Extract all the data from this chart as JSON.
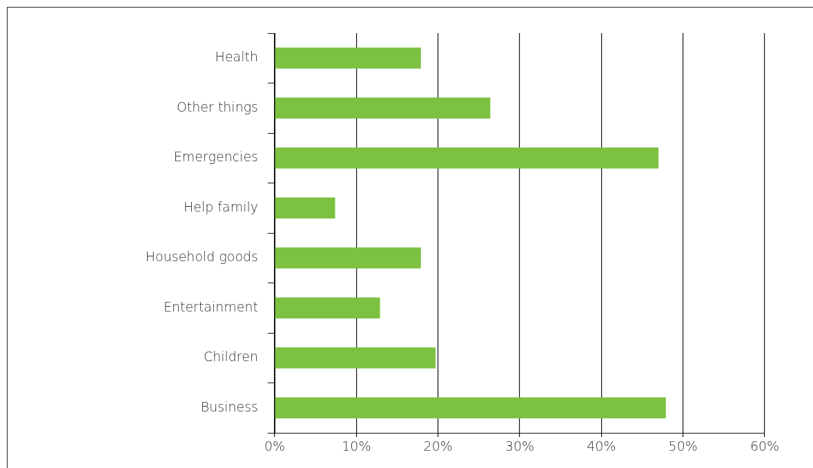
{
  "chart_data": {
    "type": "bar",
    "orientation": "horizontal",
    "categories": [
      "Health",
      "Other things",
      "Emergencies",
      "Help family",
      "Household goods",
      "Entertainment",
      "Children",
      "Business"
    ],
    "values": [
      17.9,
      26.4,
      47,
      7.4,
      17.9,
      12.9,
      19.7,
      47.9
    ],
    "color": "#7dc142",
    "xlim": [
      0,
      60
    ],
    "xticks": [
      {
        "value": 0,
        "label": "0%"
      },
      {
        "value": 10,
        "label": "10%"
      },
      {
        "value": 20,
        "label": "20%"
      },
      {
        "value": 30,
        "label": "30%"
      },
      {
        "value": 40,
        "label": "40%"
      },
      {
        "value": 50,
        "label": "50%"
      },
      {
        "value": 60,
        "label": "60%"
      }
    ],
    "grid": "x"
  }
}
